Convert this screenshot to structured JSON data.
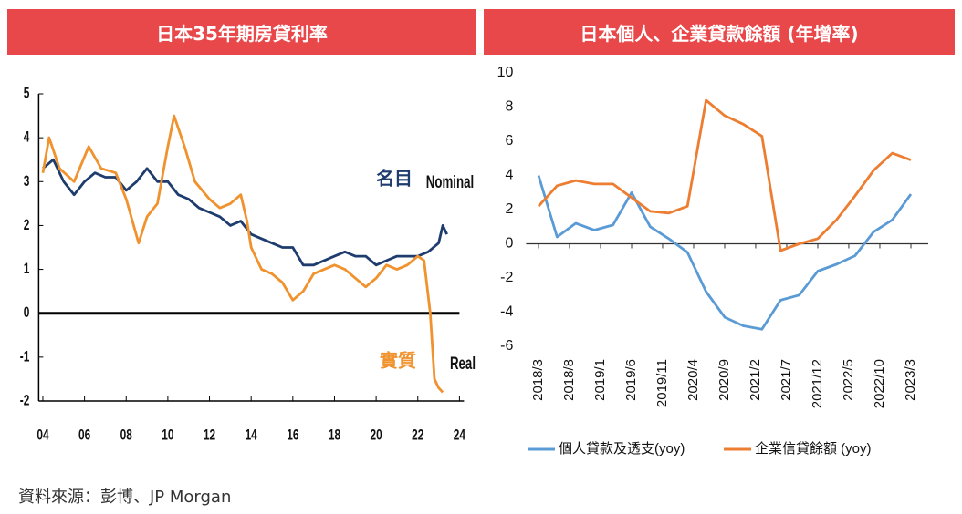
{
  "chart_data": [
    {
      "type": "line",
      "title": "日本35年期房貸利率",
      "xlim": [
        2003.8,
        2024
      ],
      "ylim": [
        -2,
        5
      ],
      "xticks": [
        {
          "value": 2004,
          "label": "04"
        },
        {
          "value": 2006,
          "label": "06"
        },
        {
          "value": 2008,
          "label": "08"
        },
        {
          "value": 2010,
          "label": "10"
        },
        {
          "value": 2012,
          "label": "12"
        },
        {
          "value": 2014,
          "label": "14"
        },
        {
          "value": 2016,
          "label": "16"
        },
        {
          "value": 2018,
          "label": "18"
        },
        {
          "value": 2020,
          "label": "20"
        },
        {
          "value": 2022,
          "label": "22"
        },
        {
          "value": 2024,
          "label": "24"
        }
      ],
      "yticks": [
        -2,
        -1,
        0,
        1,
        2,
        3,
        4,
        5
      ],
      "grid": false,
      "legend": "inline",
      "series": [
        {
          "name": "名目",
          "name_en": "Nominal",
          "color": "#1f3c6e",
          "x": [
            2004.0,
            2004.5,
            2005.0,
            2005.5,
            2006.0,
            2006.5,
            2007.0,
            2007.5,
            2008.0,
            2008.5,
            2009.0,
            2009.5,
            2010.0,
            2010.5,
            2011.0,
            2011.5,
            2012.0,
            2012.5,
            2013.0,
            2013.5,
            2014.0,
            2014.5,
            2015.0,
            2015.5,
            2016.0,
            2016.5,
            2017.0,
            2017.5,
            2018.0,
            2018.5,
            2019.0,
            2019.5,
            2020.0,
            2020.5,
            2021.0,
            2021.5,
            2022.0,
            2022.5,
            2023.0,
            2023.2,
            2023.4
          ],
          "values": [
            3.3,
            3.5,
            3.0,
            2.7,
            3.0,
            3.2,
            3.1,
            3.1,
            2.8,
            3.0,
            3.3,
            3.0,
            3.0,
            2.7,
            2.6,
            2.4,
            2.3,
            2.2,
            2.0,
            2.1,
            1.8,
            1.7,
            1.6,
            1.5,
            1.5,
            1.1,
            1.1,
            1.2,
            1.3,
            1.4,
            1.3,
            1.3,
            1.1,
            1.2,
            1.3,
            1.3,
            1.3,
            1.4,
            1.6,
            2.0,
            1.8
          ]
        },
        {
          "name": "實質",
          "name_en": "Real",
          "color": "#f0922e",
          "x": [
            2004.0,
            2004.3,
            2004.8,
            2005.5,
            2006.2,
            2006.8,
            2007.5,
            2008.0,
            2008.6,
            2009.0,
            2009.5,
            2010.0,
            2010.3,
            2010.8,
            2011.3,
            2012.0,
            2012.5,
            2013.0,
            2013.5,
            2013.8,
            2014.0,
            2014.5,
            2015.0,
            2015.5,
            2016.0,
            2016.5,
            2017.0,
            2017.5,
            2018.0,
            2018.5,
            2019.0,
            2019.5,
            2020.0,
            2020.5,
            2021.0,
            2021.5,
            2022.0,
            2022.3,
            2022.6,
            2022.8,
            2023.0,
            2023.2
          ],
          "values": [
            3.2,
            4.0,
            3.3,
            3.0,
            3.8,
            3.3,
            3.2,
            2.6,
            1.6,
            2.2,
            2.5,
            3.8,
            4.5,
            3.8,
            3.0,
            2.6,
            2.4,
            2.5,
            2.7,
            2.1,
            1.5,
            1.0,
            0.9,
            0.7,
            0.3,
            0.5,
            0.9,
            1.0,
            1.1,
            1.0,
            0.8,
            0.6,
            0.8,
            1.1,
            1.0,
            1.1,
            1.3,
            1.2,
            0.0,
            -1.5,
            -1.7,
            -1.8
          ]
        }
      ]
    },
    {
      "type": "line",
      "title": "日本個人、企業貸款餘額 (年增率)",
      "xlim": [
        2018.0,
        2023.4
      ],
      "ylim": [
        -6,
        10
      ],
      "xticks": [
        {
          "value": 2018.167,
          "label": "2018/3"
        },
        {
          "value": 2018.583,
          "label": "2018/8"
        },
        {
          "value": 2019.0,
          "label": "2019/1"
        },
        {
          "value": 2019.417,
          "label": "2019/6"
        },
        {
          "value": 2019.833,
          "label": "2019/11"
        },
        {
          "value": 2020.25,
          "label": "2020/4"
        },
        {
          "value": 2020.667,
          "label": "2020/9"
        },
        {
          "value": 2021.083,
          "label": "2021/2"
        },
        {
          "value": 2021.5,
          "label": "2021/7"
        },
        {
          "value": 2021.917,
          "label": "2021/12"
        },
        {
          "value": 2022.333,
          "label": "2022/5"
        },
        {
          "value": 2022.75,
          "label": "2022/10"
        },
        {
          "value": 2023.167,
          "label": "2023/3"
        }
      ],
      "yticks": [
        -6,
        -4,
        -2,
        0,
        2,
        4,
        6,
        8,
        10
      ],
      "grid": false,
      "legend": "bottom",
      "series": [
        {
          "name": "個人貸款及透支(yoy)",
          "color": "#5b9bd5",
          "x": [
            2018.167,
            2018.417,
            2018.667,
            2018.917,
            2019.167,
            2019.417,
            2019.667,
            2019.917,
            2020.167,
            2020.417,
            2020.667,
            2020.917,
            2021.167,
            2021.417,
            2021.667,
            2021.917,
            2022.167,
            2022.417,
            2022.667,
            2022.917,
            2023.167
          ],
          "values": [
            4.0,
            0.4,
            1.2,
            0.8,
            1.1,
            3.0,
            1.0,
            0.3,
            -0.5,
            -2.8,
            -4.3,
            -4.8,
            -5.0,
            -3.3,
            -3.0,
            -1.6,
            -1.2,
            -0.7,
            0.7,
            1.4,
            2.9
          ]
        },
        {
          "name": "企業信貸餘額 (yoy)",
          "color": "#ed7d31",
          "x": [
            2018.167,
            2018.417,
            2018.667,
            2018.917,
            2019.167,
            2019.417,
            2019.667,
            2019.917,
            2020.167,
            2020.417,
            2020.667,
            2020.917,
            2021.167,
            2021.417,
            2021.667,
            2021.917,
            2022.167,
            2022.417,
            2022.667,
            2022.917,
            2023.167
          ],
          "values": [
            2.2,
            3.4,
            3.7,
            3.5,
            3.5,
            2.7,
            1.9,
            1.8,
            2.2,
            8.4,
            7.5,
            7.0,
            6.3,
            -0.4,
            0.0,
            0.3,
            1.4,
            2.8,
            4.3,
            5.3,
            4.9
          ]
        }
      ]
    }
  ],
  "source": "資料來源：彭博、JP Morgan"
}
